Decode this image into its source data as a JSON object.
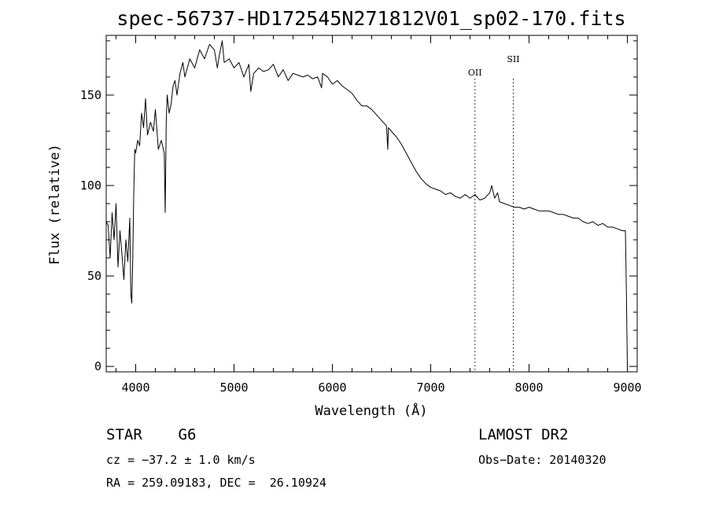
{
  "chart_data": {
    "type": "line",
    "title": "spec-56737-HD172545N271812V01_sp02-170.fits",
    "xlabel": "Wavelength (Å)",
    "ylabel": "Flux (relative)",
    "xlim": [
      3700,
      9100
    ],
    "ylim": [
      -3,
      183
    ],
    "x_ticks": [
      4000,
      5000,
      6000,
      7000,
      8000,
      9000
    ],
    "y_ticks": [
      0,
      50,
      100,
      150
    ],
    "grid": false,
    "series": [
      {
        "x": [
          3700,
          3720,
          3740,
          3760,
          3780,
          3800,
          3820,
          3840,
          3860,
          3880,
          3900,
          3920,
          3940,
          3950,
          3960,
          3970,
          3980,
          3990,
          4000,
          4020,
          4040,
          4060,
          4080,
          4100,
          4120,
          4150,
          4180,
          4200,
          4230,
          4260,
          4290,
          4300,
          4310,
          4320,
          4340,
          4360,
          4380,
          4400,
          4420,
          4450,
          4480,
          4500,
          4550,
          4600,
          4650,
          4700,
          4750,
          4800,
          4830,
          4850,
          4880,
          4900,
          4950,
          5000,
          5050,
          5100,
          5150,
          5170,
          5200,
          5250,
          5300,
          5350,
          5400,
          5450,
          5500,
          5550,
          5600,
          5650,
          5700,
          5750,
          5800,
          5850,
          5890,
          5900,
          5950,
          6000,
          6050,
          6100,
          6150,
          6200,
          6250,
          6300,
          6350,
          6400,
          6450,
          6500,
          6550,
          6563,
          6570,
          6600,
          6650,
          6700,
          6750,
          6800,
          6850,
          6900,
          6950,
          7000,
          7050,
          7100,
          7150,
          7200,
          7250,
          7300,
          7350,
          7400,
          7450,
          7500,
          7550,
          7600,
          7620,
          7650,
          7680,
          7700,
          7750,
          7800,
          7850,
          7900,
          7950,
          8000,
          8050,
          8100,
          8150,
          8200,
          8250,
          8300,
          8350,
          8400,
          8450,
          8500,
          8550,
          8600,
          8650,
          8700,
          8750,
          8800,
          8850,
          8900,
          8950,
          8980,
          8990,
          9000
        ],
        "y": [
          80,
          78,
          60,
          85,
          70,
          90,
          55,
          75,
          62,
          48,
          70,
          58,
          82,
          40,
          35,
          60,
          95,
          120,
          118,
          125,
          122,
          140,
          132,
          148,
          128,
          135,
          130,
          142,
          120,
          125,
          118,
          85,
          135,
          150,
          140,
          145,
          155,
          158,
          150,
          162,
          168,
          160,
          170,
          165,
          175,
          170,
          178,
          175,
          165,
          172,
          180,
          168,
          170,
          165,
          168,
          160,
          167,
          152,
          162,
          165,
          163,
          164,
          167,
          160,
          164,
          158,
          162,
          161,
          160,
          161,
          159,
          160,
          154,
          162,
          160,
          156,
          158,
          155,
          153,
          151,
          147,
          144,
          144,
          142,
          139,
          136,
          133,
          120,
          132,
          130,
          127,
          123,
          118,
          113,
          108,
          104,
          101,
          99,
          98,
          97,
          95,
          96,
          94,
          93,
          95,
          93,
          95,
          92,
          93,
          96,
          100,
          93,
          96,
          91,
          90,
          89,
          88,
          88,
          87,
          88,
          87,
          86,
          86,
          86,
          85,
          84,
          84,
          83,
          82,
          82,
          80,
          79,
          80,
          78,
          79,
          77,
          77,
          76,
          75,
          75,
          40,
          0
        ]
      }
    ],
    "annotations": [
      {
        "label": "OII",
        "x": 7450
      },
      {
        "label": "SII",
        "x": 7840
      }
    ]
  },
  "footer": {
    "class_label": "STAR    G6",
    "survey": "LAMOST DR2",
    "cz": "cz = −37.2 ± 1.0 km/s",
    "obs_date": "Obs−Date: 20140320",
    "coords": "RA = 259.09183, DEC =  26.10924"
  }
}
